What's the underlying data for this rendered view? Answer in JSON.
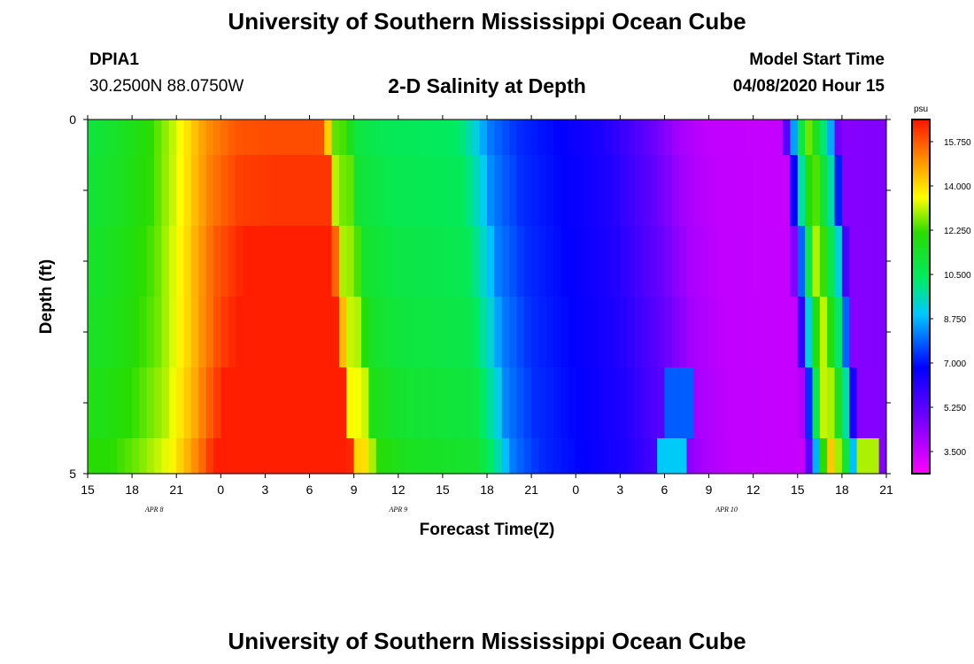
{
  "header": {
    "title": "University of Southern Mississippi Ocean Cube",
    "station": "DPIA1",
    "coords": "30.2500N 88.0750W",
    "subtitle": "2-D Salinity at Depth",
    "model_start_label": "Model Start Time",
    "model_start_value": "04/08/2020 Hour 15"
  },
  "footer": {
    "title": "University of Southern Mississippi Ocean Cube"
  },
  "chart_data": {
    "type": "heatmap",
    "title": "2-D Salinity at Depth",
    "xlabel": "Forecast Time(Z)",
    "ylabel": "Depth (ft)",
    "x_hours": [
      0,
      54
    ],
    "x_tick_labels": [
      "15",
      "18",
      "21",
      "0",
      "3",
      "6",
      "9",
      "12",
      "15",
      "18",
      "21",
      "0",
      "3",
      "6",
      "9",
      "12",
      "15",
      "18",
      "21"
    ],
    "date_labels": [
      {
        "text": "APR  8",
        "hour": 4.5
      },
      {
        "text": "APR  9",
        "hour": 21
      },
      {
        "text": "APR  10",
        "hour": 43.2
      }
    ],
    "y_range": [
      0,
      5
    ],
    "y_tick_labels": [
      {
        "value": 0,
        "text": "0"
      },
      {
        "value": 1,
        "text": ""
      },
      {
        "value": 2,
        "text": ""
      },
      {
        "value": 3,
        "text": ""
      },
      {
        "value": 4,
        "text": ""
      },
      {
        "value": 5,
        "text": "5"
      }
    ],
    "depth_layer_bounds": [
      0,
      0.5,
      1.5,
      2.5,
      3.5,
      4.5,
      5
    ],
    "colorbar": {
      "unit": "psu",
      "min": 2.625,
      "max": 16.625,
      "tick_values": [
        15.75,
        14.0,
        12.25,
        10.5,
        8.75,
        7.0,
        5.25,
        3.5
      ],
      "tick_labels": [
        "15.750",
        "14.000",
        "12.250",
        "10.500",
        "8.750",
        "7.000",
        "5.250",
        "3.500"
      ]
    },
    "surface_anchors": [
      [
        0,
        11
      ],
      [
        2,
        11.4
      ],
      [
        4,
        12
      ],
      [
        6,
        13.3
      ],
      [
        8,
        15
      ],
      [
        10,
        15.8
      ],
      [
        12,
        15.9
      ],
      [
        16,
        15.9
      ],
      [
        16.5,
        12.5
      ],
      [
        17.5,
        12.3
      ],
      [
        18,
        11
      ],
      [
        20,
        10.6
      ],
      [
        25,
        10.4
      ],
      [
        26.5,
        9
      ],
      [
        27,
        8.2
      ],
      [
        29,
        7.3
      ],
      [
        32,
        6.8
      ],
      [
        35,
        6.3
      ],
      [
        38,
        5.1
      ],
      [
        40,
        4
      ],
      [
        42,
        3.6
      ],
      [
        47,
        3.5
      ],
      [
        47.5,
        7
      ],
      [
        48,
        10
      ],
      [
        48.7,
        12.7
      ],
      [
        49.3,
        11.5
      ],
      [
        50.2,
        9
      ],
      [
        50.8,
        4.5
      ],
      [
        54,
        4.6
      ]
    ],
    "shift_hours": [
      0,
      0.3,
      0.6,
      0.9,
      1.2,
      1.5
    ],
    "deep_boost": [
      0,
      0.3,
      0.7,
      1.0,
      1.5,
      2.2
    ],
    "features": [
      {
        "layer": 4,
        "from": 38.8,
        "to": 41,
        "value": 7.8
      },
      {
        "layer": 5,
        "from": 38.5,
        "to": 40.5,
        "value": 9.0
      },
      {
        "layer": 5,
        "from": 52,
        "to": 53.5,
        "value": 13.0
      }
    ]
  }
}
